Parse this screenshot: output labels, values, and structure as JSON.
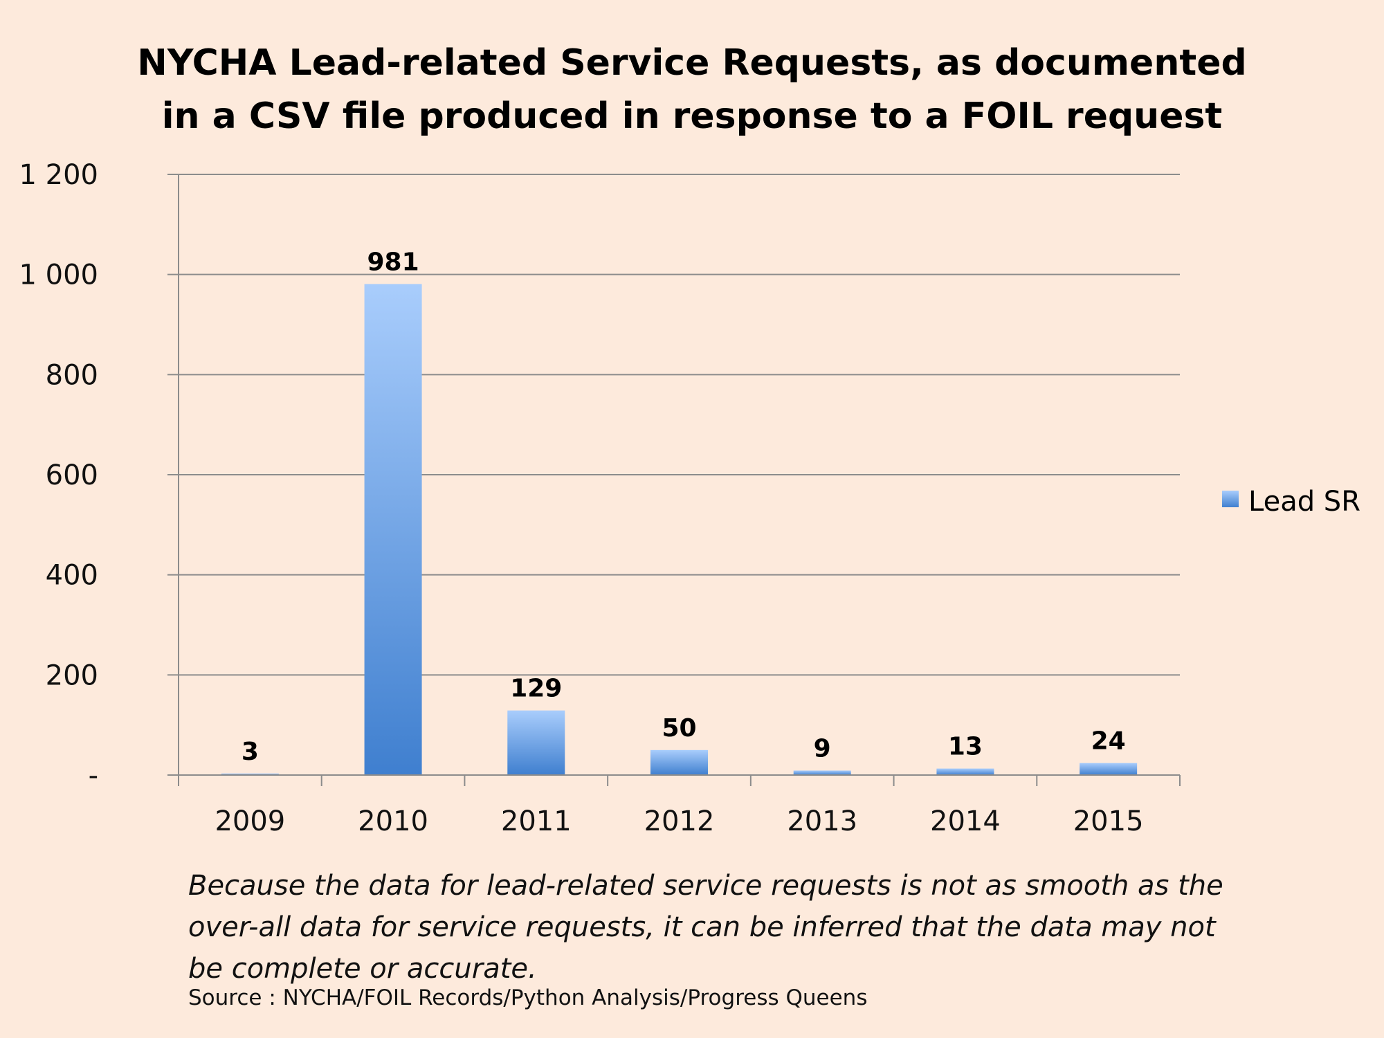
{
  "chart_data": {
    "type": "bar",
    "title_lines": [
      "NYCHA Lead-related Service Requests, as documented",
      "in a CSV file produced in response to a FOIL request"
    ],
    "categories": [
      "2009",
      "2010",
      "2011",
      "2012",
      "2013",
      "2014",
      "2015"
    ],
    "series": [
      {
        "name": "Lead SR",
        "values": [
          3,
          981,
          129,
          50,
          9,
          13,
          24
        ],
        "color_top": "#a9cdfc",
        "color_bottom": "#3f7fcf"
      }
    ],
    "data_labels": [
      "3",
      "981",
      "129",
      "50",
      "9",
      "13",
      "24"
    ],
    "ylim": [
      0,
      1200
    ],
    "yticks": [
      0,
      200,
      400,
      600,
      800,
      1000,
      1200
    ],
    "ytick_labels": [
      "-",
      "200",
      "400",
      "600",
      "800",
      "1 000",
      "1 200"
    ],
    "grid": true,
    "legend_position": "right",
    "background": "#fdeadc",
    "gridline_color": "#8c8c8c"
  },
  "caption": "Because the data for lead-related service requests is not as smooth as the over-all data for service requests, it can be inferred that the data may not be complete or accurate.",
  "source": "Source : NYCHA/FOIL Records/Python Analysis/Progress Queens"
}
